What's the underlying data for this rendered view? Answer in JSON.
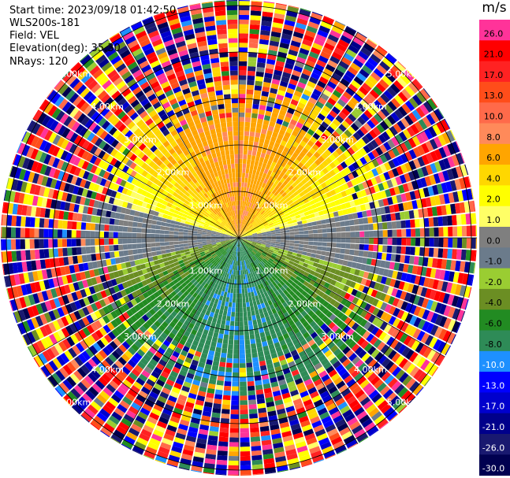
{
  "header": {
    "start_time": "Start time: 2023/09/18 01:42:50",
    "site": "WLS200s-181",
    "field": "Field: VEL",
    "elevation": "Elevation(deg): 35.30",
    "nrays": "NRays: 120"
  },
  "colorbar": {
    "unit": "m/s",
    "bins": [
      {
        "label": "26.0",
        "color": "#ff3399"
      },
      {
        "label": "21.0",
        "color": "#ff0000"
      },
      {
        "label": "17.0",
        "color": "#ff2222"
      },
      {
        "label": "13.0",
        "color": "#ff4d1a"
      },
      {
        "label": "10.0",
        "color": "#ff6a4a"
      },
      {
        "label": "8.0",
        "color": "#ff8a5a"
      },
      {
        "label": "6.0",
        "color": "#ffa500"
      },
      {
        "label": "4.0",
        "color": "#ffd700"
      },
      {
        "label": "2.0",
        "color": "#ffff00"
      },
      {
        "label": "1.0",
        "color": "#ffff66"
      },
      {
        "label": "0.0",
        "color": "#7f7f7f"
      },
      {
        "label": "-1.0",
        "color": "#6b7b8b"
      },
      {
        "label": "-2.0",
        "color": "#9acd32"
      },
      {
        "label": "-4.0",
        "color": "#6b8e23"
      },
      {
        "label": "-6.0",
        "color": "#228b22"
      },
      {
        "label": "-8.0",
        "color": "#2e8b57"
      },
      {
        "label": "-10.0",
        "color": "#1e90ff"
      },
      {
        "label": "-13.0",
        "color": "#0000ff"
      },
      {
        "label": "-17.0",
        "color": "#0000cd"
      },
      {
        "label": "-21.0",
        "color": "#00008b"
      },
      {
        "label": "-26.0",
        "color": "#191970"
      },
      {
        "label": "-30.0",
        "color": "#000050"
      }
    ]
  },
  "chart_data": {
    "type": "heatmap",
    "projection": "polar PPI",
    "field": "VEL",
    "unit": "m/s",
    "n_rays": 120,
    "range_rings_km": [
      1.0,
      2.0,
      3.0,
      4.0,
      5.0
    ],
    "ring_labels": [
      "1.00km",
      "2.00km",
      "3.00km",
      "4.00km",
      "5.00km"
    ],
    "spoke_angles_deg": [
      0,
      30,
      60,
      90,
      120,
      150,
      180,
      210,
      240,
      270,
      300,
      330
    ],
    "pattern": {
      "north_half": "positive velocities (1 to 8 m/s), yellow to orange",
      "south_half": "negative velocities (-1 to -6 m/s), grey/olive/green",
      "outer_range": "noisy speckle across full color scale beyond ~3.5 km"
    },
    "colors": {
      "background": "#ffffff",
      "grid": "#000000"
    }
  }
}
